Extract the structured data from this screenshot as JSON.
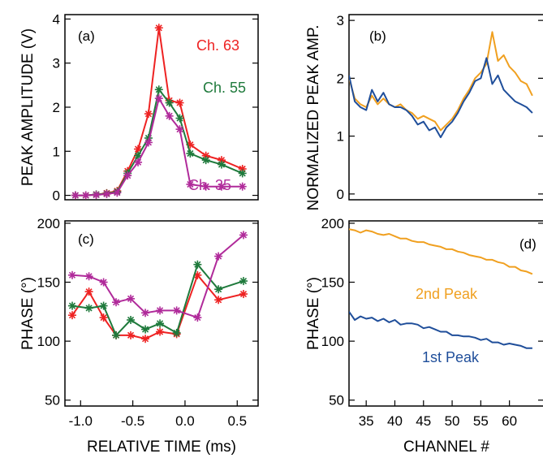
{
  "colors": {
    "red": "#ee2222",
    "green": "#1f7a3c",
    "magenta": "#b02a9a",
    "orange": "#f0a020",
    "blue": "#1f4e9a"
  },
  "chart_data": [
    {
      "panel_label": "(a)",
      "type": "line",
      "xlabel": "",
      "ylabel": "PEAK AMPLITUDE (V)",
      "xlim": [
        -1.15,
        0.7
      ],
      "ylim": [
        -0.1,
        4.1
      ],
      "xticks": [],
      "yticks": [
        0,
        1,
        2,
        3,
        4
      ],
      "grid": false,
      "markers": "asterisk",
      "x": [
        -1.05,
        -0.95,
        -0.85,
        -0.75,
        -0.65,
        -0.55,
        -0.45,
        -0.35,
        -0.25,
        -0.15,
        -0.05,
        0.05,
        0.2,
        0.35,
        0.55
      ],
      "series": [
        {
          "name": "Ch. 63",
          "color": "#ee2222",
          "values": [
            0.0,
            0.0,
            0.02,
            0.05,
            0.1,
            0.55,
            1.05,
            1.85,
            3.8,
            2.15,
            2.1,
            1.15,
            0.9,
            0.8,
            0.6
          ]
        },
        {
          "name": "Ch. 55",
          "color": "#1f7a3c",
          "values": [
            0.0,
            0.0,
            0.02,
            0.04,
            0.08,
            0.5,
            0.9,
            1.3,
            2.4,
            2.1,
            1.75,
            0.95,
            0.8,
            0.7,
            0.5
          ]
        },
        {
          "name": "Ch. 35",
          "color": "#b02a9a",
          "values": [
            0.0,
            0.0,
            0.01,
            0.03,
            0.06,
            0.45,
            0.75,
            1.2,
            2.2,
            1.8,
            1.5,
            0.25,
            0.2,
            0.2,
            0.2
          ]
        }
      ]
    },
    {
      "panel_label": "(b)",
      "type": "line",
      "xlabel": "",
      "ylabel": "NORMALIZED PEAK AMP.",
      "xlim": [
        32,
        66
      ],
      "ylim": [
        -0.1,
        3.1
      ],
      "xticks": [],
      "yticks": [
        0,
        1,
        2,
        3
      ],
      "grid": false,
      "x": [
        32,
        33,
        34,
        35,
        36,
        37,
        38,
        39,
        40,
        41,
        42,
        43,
        44,
        45,
        46,
        47,
        48,
        49,
        50,
        51,
        52,
        53,
        54,
        55,
        56,
        57,
        58,
        59,
        60,
        61,
        62,
        63,
        64
      ],
      "series": [
        {
          "name": "2nd Peak",
          "color": "#f0a020",
          "values": [
            2.0,
            1.65,
            1.55,
            1.5,
            1.7,
            1.55,
            1.65,
            1.55,
            1.5,
            1.55,
            1.45,
            1.4,
            1.3,
            1.35,
            1.3,
            1.25,
            1.1,
            1.2,
            1.3,
            1.45,
            1.65,
            1.8,
            2.0,
            2.1,
            2.25,
            2.8,
            2.3,
            2.4,
            2.2,
            2.1,
            1.95,
            1.9,
            1.7
          ]
        },
        {
          "name": "1st Peak",
          "color": "#1f4e9a",
          "values": [
            2.05,
            1.6,
            1.5,
            1.45,
            1.8,
            1.6,
            1.75,
            1.55,
            1.5,
            1.5,
            1.45,
            1.35,
            1.2,
            1.25,
            1.1,
            1.15,
            0.98,
            1.15,
            1.25,
            1.4,
            1.6,
            1.75,
            1.95,
            2.0,
            2.35,
            1.9,
            2.05,
            1.8,
            1.7,
            1.6,
            1.55,
            1.5,
            1.4
          ]
        }
      ]
    },
    {
      "panel_label": "(c)",
      "type": "line",
      "xlabel": "RELATIVE TIME (ms)",
      "ylabel": "PHASE (°)",
      "xlim": [
        -1.15,
        0.7
      ],
      "ylim": [
        45,
        202
      ],
      "xticks": [
        -1.0,
        -0.5,
        0.0,
        0.5
      ],
      "xtick_labels": [
        "-1.0",
        "-0.5",
        "0.0",
        "0.5"
      ],
      "yticks": [
        50,
        100,
        150,
        200
      ],
      "grid": false,
      "markers": "asterisk",
      "x": [
        -1.08,
        -0.92,
        -0.78,
        -0.66,
        -0.52,
        -0.38,
        -0.24,
        -0.08,
        0.12,
        0.32,
        0.56
      ],
      "series": [
        {
          "name": "",
          "color": "#ee2222",
          "values": [
            122,
            142,
            120,
            105,
            105,
            102,
            108,
            106,
            156,
            135,
            140
          ]
        },
        {
          "name": "",
          "color": "#1f7a3c",
          "values": [
            130,
            128,
            130,
            105,
            118,
            110,
            115,
            107,
            165,
            144,
            151
          ]
        },
        {
          "name": "",
          "color": "#b02a9a",
          "values": [
            156,
            155,
            150,
            133,
            136,
            124,
            126,
            126,
            120,
            172,
            190
          ]
        }
      ]
    },
    {
      "panel_label": "(d)",
      "type": "line",
      "xlabel": "CHANNEL #",
      "ylabel": "PHASE (°)",
      "xlim": [
        32,
        66
      ],
      "ylim": [
        45,
        202
      ],
      "xticks": [
        35,
        40,
        45,
        50,
        55,
        60
      ],
      "xtick_labels": [
        "35",
        "40",
        "45",
        "50",
        "55",
        "60"
      ],
      "yticks": [
        50,
        100,
        150,
        200
      ],
      "grid": false,
      "x": [
        32,
        33,
        34,
        35,
        36,
        37,
        38,
        39,
        40,
        41,
        42,
        43,
        44,
        45,
        46,
        47,
        48,
        49,
        50,
        51,
        52,
        53,
        54,
        55,
        56,
        57,
        58,
        59,
        60,
        61,
        62,
        63,
        64
      ],
      "series": [
        {
          "name": "2nd Peak",
          "color": "#f0a020",
          "values": [
            195,
            194,
            192,
            194,
            193,
            191,
            190,
            191,
            189,
            187,
            187,
            185,
            184,
            184,
            182,
            181,
            180,
            178,
            178,
            176,
            175,
            173,
            172,
            171,
            169,
            169,
            167,
            166,
            163,
            163,
            160,
            159,
            157
          ]
        },
        {
          "name": "1st Peak",
          "color": "#1f4e9a",
          "values": [
            125,
            118,
            121,
            119,
            120,
            117,
            119,
            116,
            118,
            114,
            115,
            115,
            114,
            111,
            112,
            110,
            108,
            108,
            105,
            105,
            104,
            104,
            103,
            101,
            102,
            99,
            99,
            97,
            98,
            97,
            96,
            94,
            94
          ]
        }
      ]
    }
  ]
}
